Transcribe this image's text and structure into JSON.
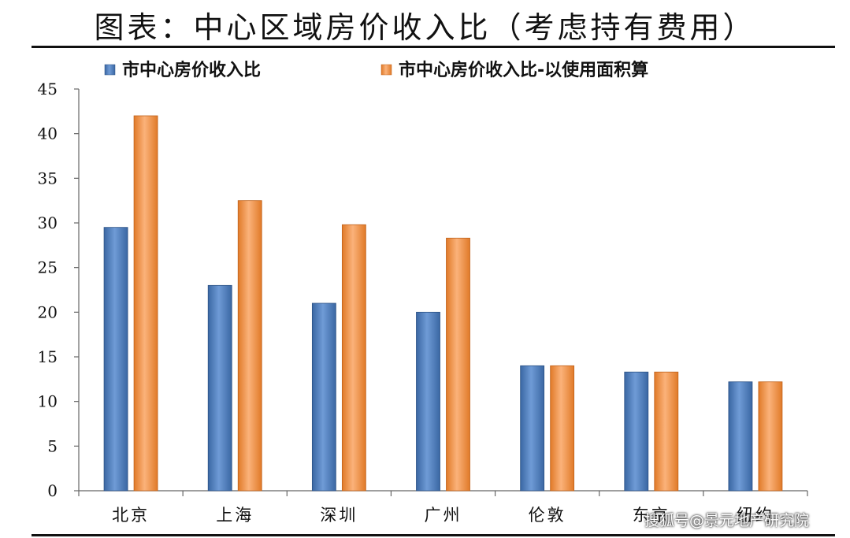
{
  "title": "图表：中心区域房价收入比（考虑持有费用）",
  "watermark": "搜狐号@景元地产研究院",
  "colors": {
    "series1": "#4f81bd",
    "series2": "#f79646"
  },
  "chart_data": {
    "type": "bar",
    "title": "图表：中心区域房价收入比（考虑持有费用）",
    "categories": [
      "北京",
      "上海",
      "深圳",
      "广州",
      "伦敦",
      "东京",
      "纽约"
    ],
    "series": [
      {
        "name": "市中心房价收入比",
        "values": [
          29.5,
          23.0,
          21.0,
          20.0,
          14.0,
          13.3,
          12.2
        ]
      },
      {
        "name": "市中心房价收入比-以使用面积算",
        "values": [
          42.0,
          32.5,
          29.8,
          28.3,
          14.0,
          13.3,
          12.2
        ]
      }
    ],
    "ylim": [
      0,
      45
    ],
    "yticks": [
      0,
      5,
      10,
      15,
      20,
      25,
      30,
      35,
      40,
      45
    ],
    "legend": "top",
    "grid": false
  }
}
